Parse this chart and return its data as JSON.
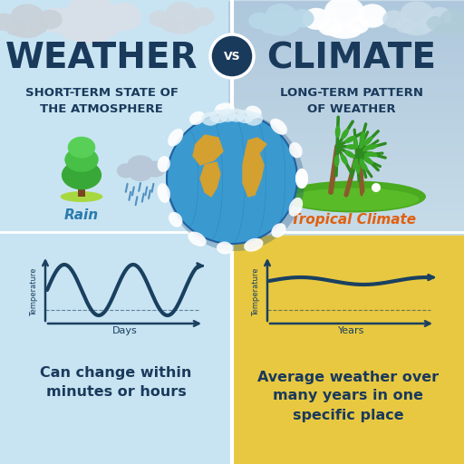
{
  "left_bg_top": "#d4e8f0",
  "left_bg_bottom": "#c8e4f0",
  "right_bg_top": "#c8dfe8",
  "right_bg_bottom": "#e8c840",
  "weather_title": "WEATHER",
  "climate_title": "CLIMATE",
  "vs_text": "VS",
  "vs_circle_color": "#1a3a5c",
  "weather_subtitle": "SHORT-TERM STATE OF\nTHE ATMOSPHERE",
  "climate_subtitle": "LONG-TERM PATTERN\nOF WEATHER",
  "rain_label": "Rain",
  "tropical_label": "Tropical Climate",
  "weather_desc": "Can change within\nminutes or hours",
  "climate_desc": "Average weather over\nmany years in one\nspecific place",
  "days_label": "Days",
  "years_label": "Years",
  "temp_label": "Temperature",
  "title_color": "#1a3a5c",
  "subtitle_color": "#1a3a5c",
  "rain_color": "#2a7aad",
  "tropical_color": "#e06010",
  "desc_color": "#1a3a5c",
  "axis_color": "#1a3a5c",
  "line_color": "#1a4060",
  "globe_blue": "#3a9ad0",
  "globe_dark_blue": "#2070a0",
  "continent_color": "#d4a030",
  "cloud_white": "#f0f4f8",
  "cloud_gray": "#d0d8e0",
  "cloud_blue": "#a0c8d8"
}
